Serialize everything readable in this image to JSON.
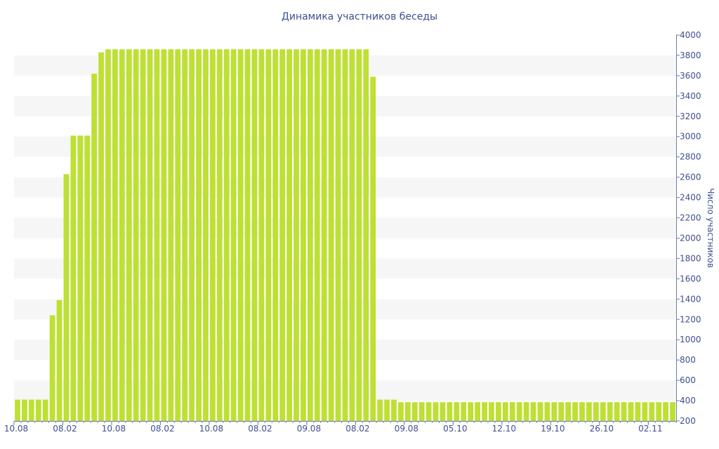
{
  "chart_data": {
    "type": "bar",
    "title": "Динамика участников беседы",
    "ylabel": "Число участников",
    "xlabel": "",
    "ylim": [
      200,
      4000
    ],
    "yticks": [
      200,
      400,
      600,
      800,
      1000,
      1200,
      1400,
      1600,
      1800,
      2000,
      2200,
      2400,
      2600,
      2800,
      3000,
      3200,
      3400,
      3600,
      3800,
      4000
    ],
    "y_axis_position": "right",
    "grid": "alternating-horizontal-bands",
    "legend": "none",
    "bar_color": "#bde033",
    "xtick_labels": [
      {
        "index": 0,
        "label": "10.08"
      },
      {
        "index": 7,
        "label": "08.02"
      },
      {
        "index": 14,
        "label": "10.08"
      },
      {
        "index": 21,
        "label": "08.02"
      },
      {
        "index": 28,
        "label": "10.08"
      },
      {
        "index": 35,
        "label": "08.02"
      },
      {
        "index": 42,
        "label": "09.08"
      },
      {
        "index": 49,
        "label": "08.02"
      },
      {
        "index": 56,
        "label": "09.08"
      },
      {
        "index": 63,
        "label": "05.10"
      },
      {
        "index": 70,
        "label": "12.10"
      },
      {
        "index": 77,
        "label": "19.10"
      },
      {
        "index": 84,
        "label": "26.10"
      },
      {
        "index": 91,
        "label": "02.11"
      }
    ],
    "values": [
      410,
      410,
      410,
      410,
      410,
      1240,
      1390,
      2630,
      3010,
      3010,
      3010,
      3620,
      3830,
      3860,
      3860,
      3860,
      3860,
      3860,
      3860,
      3860,
      3860,
      3860,
      3860,
      3860,
      3860,
      3860,
      3860,
      3860,
      3860,
      3860,
      3860,
      3860,
      3860,
      3860,
      3860,
      3860,
      3860,
      3860,
      3860,
      3860,
      3860,
      3860,
      3860,
      3860,
      3860,
      3860,
      3860,
      3860,
      3860,
      3860,
      3860,
      3590,
      410,
      410,
      410,
      385,
      385,
      385,
      385,
      385,
      385,
      385,
      385,
      385,
      385,
      385,
      385,
      385,
      385,
      385,
      385,
      385,
      385,
      385,
      385,
      385,
      385,
      385,
      385,
      385,
      385,
      385,
      385,
      385,
      385,
      385,
      385,
      385,
      385,
      385,
      385,
      385,
      385,
      385,
      385
    ]
  }
}
